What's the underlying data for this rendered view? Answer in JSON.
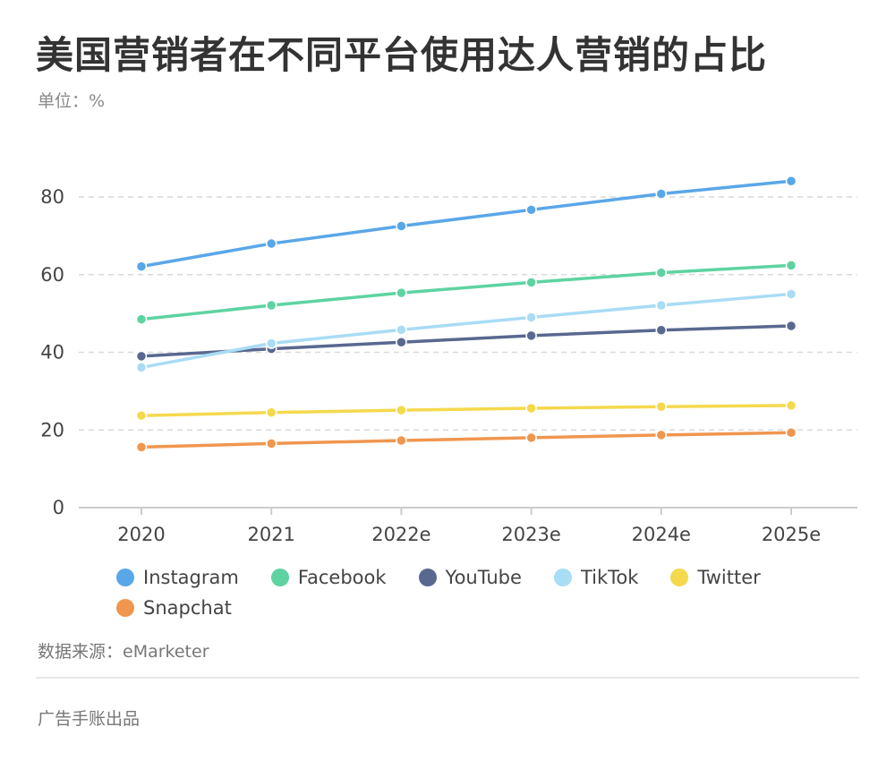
{
  "title": "美国营销者在不同平台使用达人营销的占比",
  "unit_label": "单位：%",
  "source_label": "数据来源：eMarketer",
  "footer_label": "广告手账出品",
  "chart_data": {
    "type": "line",
    "title": "美国营销者在不同平台使用达人营销的占比",
    "ylabel": "%",
    "categories": [
      "2020",
      "2021",
      "2022e",
      "2023e",
      "2024e",
      "2025e"
    ],
    "ylim": [
      0,
      90
    ],
    "yticks": [
      0,
      20,
      40,
      60,
      80
    ],
    "grid": true,
    "legend_position": "bottom",
    "series": [
      {
        "name": "Instagram",
        "color": "#5aa7e8",
        "values": [
          62.1,
          68.0,
          72.5,
          76.7,
          80.8,
          84.1
        ]
      },
      {
        "name": "Facebook",
        "color": "#5ed3a1",
        "values": [
          48.5,
          52.1,
          55.3,
          58.0,
          60.5,
          62.4
        ]
      },
      {
        "name": "YouTube",
        "color": "#59688f",
        "values": [
          39.0,
          40.9,
          42.6,
          44.3,
          45.7,
          46.8
        ]
      },
      {
        "name": "TikTok",
        "color": "#a9dcf5",
        "values": [
          36.1,
          42.3,
          45.8,
          49.0,
          52.1,
          55.0
        ]
      },
      {
        "name": "Twitter",
        "color": "#f5d94d",
        "values": [
          23.7,
          24.5,
          25.1,
          25.6,
          26.0,
          26.3
        ]
      },
      {
        "name": "Snapchat",
        "color": "#f0964f",
        "values": [
          15.6,
          16.5,
          17.3,
          18.0,
          18.7,
          19.3
        ]
      }
    ]
  }
}
